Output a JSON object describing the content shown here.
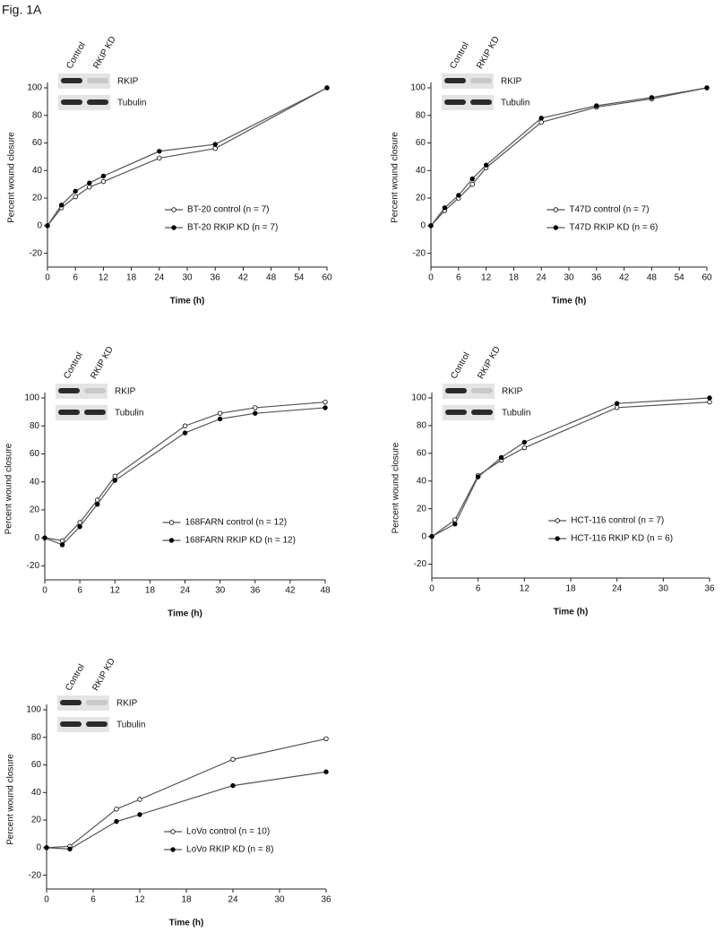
{
  "figure_label": "Fig. 1A",
  "chart_data": [
    {
      "type": "line",
      "x": [
        0,
        3,
        6,
        9,
        12,
        24,
        36,
        60
      ],
      "series": [
        {
          "name": "BT-20 control (n = 7)",
          "color": "#555555",
          "marker_fill": "#ffffff",
          "values": [
            0,
            13,
            21,
            28,
            32,
            49,
            56,
            100
          ]
        },
        {
          "name": "BT-20 RKIP KD (n = 7)",
          "color": "#555555",
          "marker_fill": "#000000",
          "values": [
            0,
            15,
            25,
            31,
            36,
            54,
            59,
            100
          ]
        }
      ],
      "xlim": [
        0,
        60
      ],
      "xticks": [
        0,
        6,
        12,
        18,
        24,
        30,
        36,
        42,
        48,
        54,
        60
      ],
      "ylim": [
        -30,
        100
      ],
      "yticks": [
        -20,
        0,
        20,
        40,
        60,
        80,
        100
      ],
      "xlabel": "Time (h)",
      "ylabel": "Percent wound closure",
      "legend": "lower right",
      "blot": {
        "lanes": [
          "Control",
          "RKIP KD"
        ],
        "rows": [
          "RKIP",
          "Tubulin"
        ]
      }
    },
    {
      "type": "line",
      "x": [
        0,
        3,
        6,
        9,
        12,
        24,
        36,
        48,
        60
      ],
      "series": [
        {
          "name": "T47D control (n = 7)",
          "color": "#555555",
          "marker_fill": "#ffffff",
          "values": [
            0,
            11,
            20,
            30,
            42,
            75,
            86,
            92,
            100
          ]
        },
        {
          "name": "T47D RKIP KD (n = 6)",
          "color": "#555555",
          "marker_fill": "#000000",
          "values": [
            0,
            13,
            22,
            34,
            44,
            78,
            87,
            93,
            100
          ]
        }
      ],
      "xlim": [
        0,
        60
      ],
      "xticks": [
        0,
        6,
        12,
        18,
        24,
        30,
        36,
        42,
        48,
        54,
        60
      ],
      "ylim": [
        -30,
        100
      ],
      "yticks": [
        -20,
        0,
        20,
        40,
        60,
        80,
        100
      ],
      "xlabel": "Time (h)",
      "ylabel": "Percent wound closure",
      "legend": "lower right",
      "blot": {
        "lanes": [
          "Control",
          "RKIP KD"
        ],
        "rows": [
          "RKIP",
          "Tubulin"
        ]
      }
    },
    {
      "type": "line",
      "x": [
        0,
        3,
        6,
        9,
        12,
        24,
        30,
        36,
        48
      ],
      "series": [
        {
          "name": "168FARN control (n = 12)",
          "color": "#555555",
          "marker_fill": "#ffffff",
          "values": [
            0,
            -2,
            11,
            27,
            44,
            80,
            89,
            93,
            97
          ]
        },
        {
          "name": "168FARN RKIP KD (n = 12)",
          "color": "#555555",
          "marker_fill": "#000000",
          "values": [
            0,
            -5,
            8,
            24,
            41,
            75,
            85,
            89,
            93
          ]
        }
      ],
      "xlim": [
        0,
        48
      ],
      "xticks": [
        0,
        6,
        12,
        18,
        24,
        30,
        36,
        42,
        48
      ],
      "ylim": [
        -30,
        100
      ],
      "yticks": [
        -20,
        0,
        20,
        40,
        60,
        80,
        100
      ],
      "xlabel": "Time (h)",
      "ylabel": "Percent wound closure",
      "legend": "lower right",
      "blot": {
        "lanes": [
          "Control",
          "RKIP KD"
        ],
        "rows": [
          "RKIP",
          "Tubulin"
        ]
      }
    },
    {
      "type": "line",
      "x": [
        0,
        3,
        6,
        9,
        12,
        24,
        36
      ],
      "series": [
        {
          "name": "HCT-116 control (n = 7)",
          "color": "#555555",
          "marker_fill": "#ffffff",
          "values": [
            0,
            12,
            44,
            55,
            64,
            93,
            97
          ]
        },
        {
          "name": "HCT-116 RKIP KD (n = 6)",
          "color": "#555555",
          "marker_fill": "#000000",
          "values": [
            0,
            9,
            43,
            57,
            68,
            96,
            100
          ]
        }
      ],
      "xlim": [
        0,
        36
      ],
      "xticks": [
        0,
        6,
        12,
        18,
        24,
        30,
        36
      ],
      "ylim": [
        -30,
        100
      ],
      "yticks": [
        -20,
        0,
        20,
        40,
        60,
        80,
        100
      ],
      "xlabel": "Time (h)",
      "ylabel": "Percent wound closure",
      "legend": "lower right",
      "blot": {
        "lanes": [
          "Control",
          "RKIP KD"
        ],
        "rows": [
          "RKIP",
          "Tubulin"
        ]
      }
    },
    {
      "type": "line",
      "x": [
        0,
        3,
        9,
        12,
        24,
        36
      ],
      "series": [
        {
          "name": "LoVo control (n = 10)",
          "color": "#555555",
          "marker_fill": "#ffffff",
          "values": [
            0,
            1,
            28,
            35,
            64,
            79
          ]
        },
        {
          "name": "LoVo RKIP KD (n = 8)",
          "color": "#555555",
          "marker_fill": "#000000",
          "values": [
            0,
            -1,
            19,
            24,
            45,
            55
          ]
        }
      ],
      "xlim": [
        0,
        36
      ],
      "xticks": [
        0,
        6,
        12,
        18,
        24,
        30,
        36
      ],
      "ylim": [
        -30,
        100
      ],
      "yticks": [
        -20,
        0,
        20,
        40,
        60,
        80,
        100
      ],
      "xlabel": "Time (h)",
      "ylabel": "Percent wound closure",
      "legend": "lower right",
      "blot": {
        "lanes": [
          "Control",
          "RKIP KD"
        ],
        "rows": [
          "RKIP",
          "Tubulin"
        ]
      }
    }
  ]
}
